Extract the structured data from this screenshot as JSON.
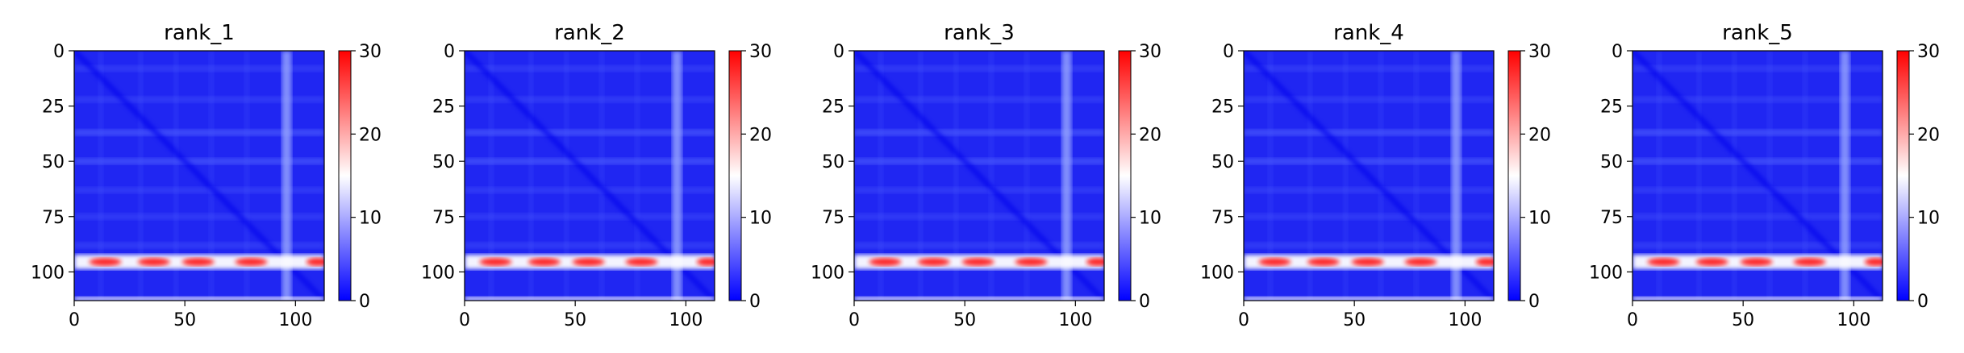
{
  "chart_data": [
    {
      "type": "heatmap",
      "title": "rank_1",
      "size": 113,
      "xticks": [
        0,
        50,
        100
      ],
      "yticks": [
        0,
        25,
        50,
        75,
        100
      ],
      "colorbar": {
        "min": 0,
        "max": 30,
        "ticks": [
          0,
          10,
          20,
          30
        ],
        "colormap": "bwr"
      }
    },
    {
      "type": "heatmap",
      "title": "rank_2",
      "size": 113,
      "xticks": [
        0,
        50,
        100
      ],
      "yticks": [
        0,
        25,
        50,
        75,
        100
      ],
      "colorbar": {
        "min": 0,
        "max": 30,
        "ticks": [
          0,
          10,
          20,
          30
        ],
        "colormap": "bwr"
      }
    },
    {
      "type": "heatmap",
      "title": "rank_3",
      "size": 113,
      "xticks": [
        0,
        50,
        100
      ],
      "yticks": [
        0,
        25,
        50,
        75,
        100
      ],
      "colorbar": {
        "min": 0,
        "max": 30,
        "ticks": [
          0,
          10,
          20,
          30
        ],
        "colormap": "bwr"
      }
    },
    {
      "type": "heatmap",
      "title": "rank_4",
      "size": 113,
      "xticks": [
        0,
        50,
        100
      ],
      "yticks": [
        0,
        25,
        50,
        75,
        100
      ],
      "colorbar": {
        "min": 0,
        "max": 30,
        "ticks": [
          0,
          10,
          20,
          30
        ],
        "colormap": "bwr"
      }
    },
    {
      "type": "heatmap",
      "title": "rank_5",
      "size": 113,
      "xticks": [
        0,
        50,
        100
      ],
      "yticks": [
        0,
        25,
        50,
        75,
        100
      ],
      "colorbar": {
        "min": 0,
        "max": 30,
        "ticks": [
          0,
          10,
          20,
          30
        ],
        "colormap": "bwr"
      }
    }
  ],
  "colors": {
    "low": "#0000ff",
    "mid": "#ffffff",
    "high": "#ff0000"
  }
}
